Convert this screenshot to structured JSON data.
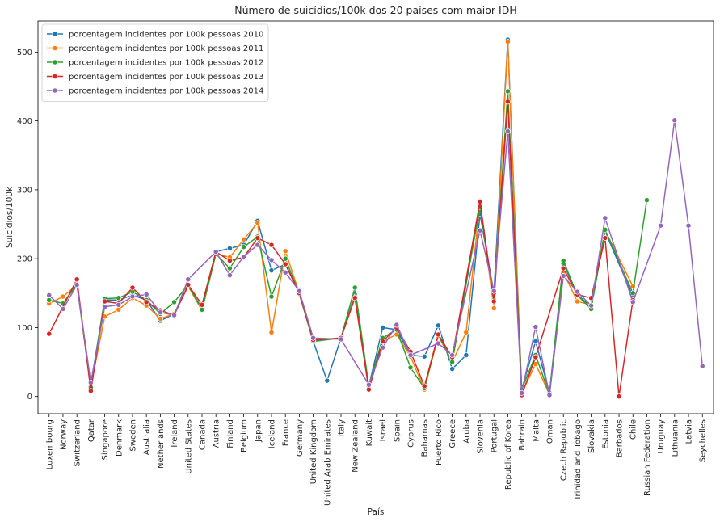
{
  "chart_data": {
    "type": "line",
    "title": "Número de suicídios/100k dos 20 países com maior IDH",
    "xlabel": "País",
    "ylabel": "Suicídios/100k",
    "ylim": [
      -25,
      545
    ],
    "yticks": [
      0,
      100,
      200,
      300,
      400,
      500
    ],
    "grid": false,
    "legend_position": "top-left",
    "categories": [
      "Luxembourg",
      "Norway",
      "Switzerland",
      "Qatar",
      "Singapore",
      "Denmark",
      "Sweden",
      "Australia",
      "Netherlands",
      "Ireland",
      "United States",
      "Canada",
      "Austria",
      "Finland",
      "Belgium",
      "Japan",
      "Iceland",
      "France",
      "Germany",
      "United Kingdom",
      "United Arab Emirates",
      "Italy",
      "New Zealand",
      "Kuwait",
      "Israel",
      "Spain",
      "Cyprus",
      "Bahamas",
      "Puerto Rico",
      "Greece",
      "Aruba",
      "Slovenia",
      "Portugal",
      "Republic of Korea",
      "Bahrain",
      "Malta",
      "Oman",
      "Czech Republic",
      "Trinidad and Tobago",
      "Slovakia",
      "Estonia",
      "Barbados",
      "Chile",
      "Russian Federation",
      "Uruguay",
      "Lithuania",
      "Latvia",
      "Seychelles"
    ],
    "series": [
      {
        "name": "porcentagem incidentes por 100k pessoas 2010",
        "color": "#1f77b4",
        "values": [
          140,
          135,
          163,
          18,
          140,
          140,
          147,
          140,
          110,
          120,
          160,
          128,
          210,
          215,
          220,
          255,
          183,
          192,
          150,
          80,
          23,
          85,
          148,
          15,
          100,
          97,
          60,
          58,
          103,
          40,
          60,
          265,
          150,
          518,
          10,
          80,
          5,
          193,
          148,
          130,
          240,
          null,
          145,
          null,
          null,
          null,
          null,
          null
        ]
      },
      {
        "name": "porcentagem incidentes por 100k pessoas 2011",
        "color": "#ff7f0e",
        "values": [
          135,
          145,
          162,
          15,
          116,
          126,
          143,
          132,
          113,
          120,
          160,
          125,
          207,
          202,
          228,
          252,
          93,
          211,
          150,
          80,
          null,
          85,
          145,
          15,
          80,
          90,
          58,
          10,
          88,
          50,
          93,
          280,
          128,
          515,
          5,
          47,
          3,
          180,
          138,
          133,
          241,
          null,
          160,
          null,
          null,
          null,
          null,
          null
        ]
      },
      {
        "name": "porcentagem incidentes por 100k pessoas 2012",
        "color": "#2ca02c",
        "values": [
          140,
          135,
          163,
          13,
          142,
          143,
          152,
          140,
          120,
          137,
          162,
          126,
          207,
          186,
          217,
          232,
          145,
          200,
          149,
          80,
          null,
          85,
          158,
          15,
          85,
          97,
          42,
          12,
          90,
          50,
          null,
          275,
          140,
          443,
          10,
          60,
          3,
          197,
          147,
          127,
          242,
          null,
          150,
          285,
          null,
          null,
          null,
          null
        ]
      },
      {
        "name": "porcentagem incidentes por 100k pessoas 2013",
        "color": "#d62728",
        "values": [
          91,
          null,
          170,
          8,
          138,
          135,
          158,
          137,
          125,
          118,
          162,
          133,
          210,
          197,
          202,
          230,
          220,
          192,
          150,
          82,
          null,
          85,
          143,
          10,
          80,
          100,
          65,
          15,
          90,
          57,
          null,
          283,
          138,
          428,
          2,
          57,
          null,
          186,
          148,
          143,
          230,
          0,
          140,
          null,
          null,
          null,
          null,
          null
        ]
      },
      {
        "name": "porcentagem incidentes por 100k pessoas 2014",
        "color": "#9467bd",
        "values": [
          147,
          127,
          162,
          20,
          130,
          133,
          145,
          148,
          122,
          118,
          170,
          null,
          210,
          176,
          203,
          220,
          198,
          180,
          153,
          85,
          null,
          83,
          null,
          17,
          71,
          104,
          60,
          null,
          77,
          60,
          null,
          241,
          153,
          385,
          5,
          101,
          2,
          175,
          152,
          132,
          259,
          null,
          137,
          null,
          248,
          401,
          248,
          44
        ]
      }
    ]
  }
}
